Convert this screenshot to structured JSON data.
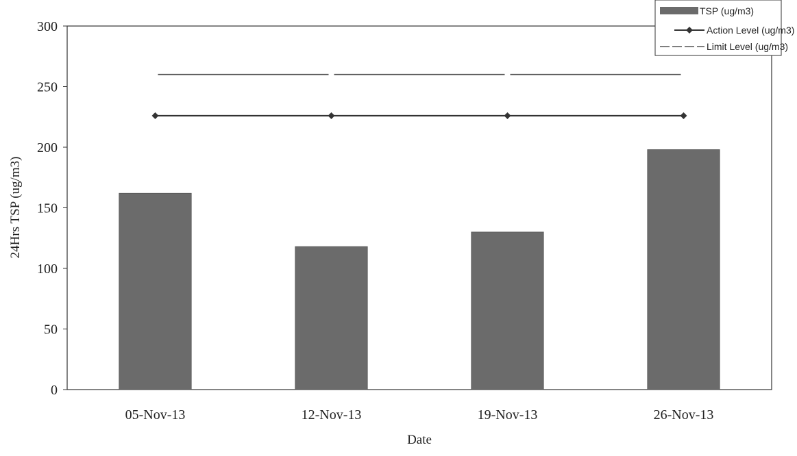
{
  "chart_data": {
    "type": "bar",
    "title": "",
    "xlabel": "Date",
    "ylabel": "24Hrs TSP (ug/m3)",
    "categories": [
      "05-Nov-13",
      "12-Nov-13",
      "19-Nov-13",
      "26-Nov-13"
    ],
    "ylim": [
      0,
      300
    ],
    "yticks": [
      "0",
      "50",
      "100",
      "150",
      "200",
      "250",
      "300"
    ],
    "grid": false,
    "legend_position": "top-right",
    "series": [
      {
        "name": "TSP (ug/m3)",
        "kind": "bar",
        "values": [
          162,
          118,
          130,
          198
        ],
        "color": "#6b6b6b"
      },
      {
        "name": "Action Level (ug/m3)",
        "kind": "line-marker",
        "values": [
          226,
          226,
          226,
          226
        ],
        "color": "#333333"
      },
      {
        "name": "Limit Level (ug/m3)",
        "kind": "dashed-line",
        "values": [
          260,
          260,
          260,
          260
        ],
        "color": "#555555"
      }
    ]
  }
}
